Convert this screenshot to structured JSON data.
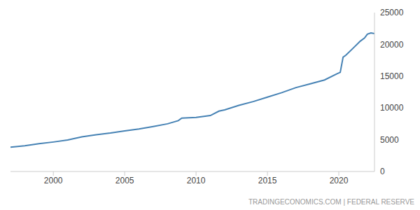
{
  "chart_data": {
    "type": "line",
    "source": "TRADINGECONOMICS.COM | FEDERAL RESERVE",
    "x": [
      1997,
      1998,
      1999,
      2000,
      2001,
      2002,
      2003,
      2004,
      2005,
      2006,
      2007,
      2008,
      2008.75,
      2009,
      2010,
      2011,
      2011.6,
      2012,
      2013,
      2014,
      2015,
      2016,
      2017,
      2018,
      2019,
      2019.9,
      2020.1,
      2020.3,
      2020.5,
      2021,
      2021.5,
      2021.8,
      2022,
      2022.25,
      2022.5
    ],
    "values": [
      3830,
      4040,
      4380,
      4640,
      4950,
      5440,
      5780,
      6060,
      6400,
      6680,
      7070,
      7500,
      8000,
      8400,
      8500,
      8800,
      9500,
      9700,
      10400,
      11000,
      11700,
      12400,
      13200,
      13800,
      14400,
      15400,
      15600,
      18000,
      18300,
      19400,
      20500,
      21000,
      21600,
      21800,
      21700
    ],
    "color": "#4682b4",
    "xlim": [
      1997,
      2022.5
    ],
    "xticks": [
      2000,
      2005,
      2010,
      2015,
      2020
    ],
    "ylim": [
      0,
      25000
    ],
    "yticks": [
      0,
      5000,
      10000,
      15000,
      20000,
      25000
    ],
    "grid": false
  }
}
